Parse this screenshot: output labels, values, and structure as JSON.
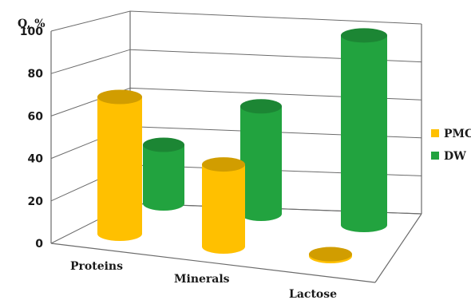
{
  "chart_data": {
    "type": "bar",
    "style": "3d-cylinder",
    "ylabel": "Q, %",
    "ylim": [
      0,
      100
    ],
    "yticks": [
      "0",
      "20",
      "40",
      "60",
      "80",
      "100"
    ],
    "categories": [
      "Proteins",
      "Minerals",
      "Lactose"
    ],
    "series": [
      {
        "name": "PMC",
        "color": "#FFC000",
        "values": [
          70,
          42,
          1
        ]
      },
      {
        "name": "DW",
        "color": "#22A33F",
        "values": [
          30,
          55,
          97
        ]
      }
    ],
    "legend_position": "right",
    "grid": true
  }
}
